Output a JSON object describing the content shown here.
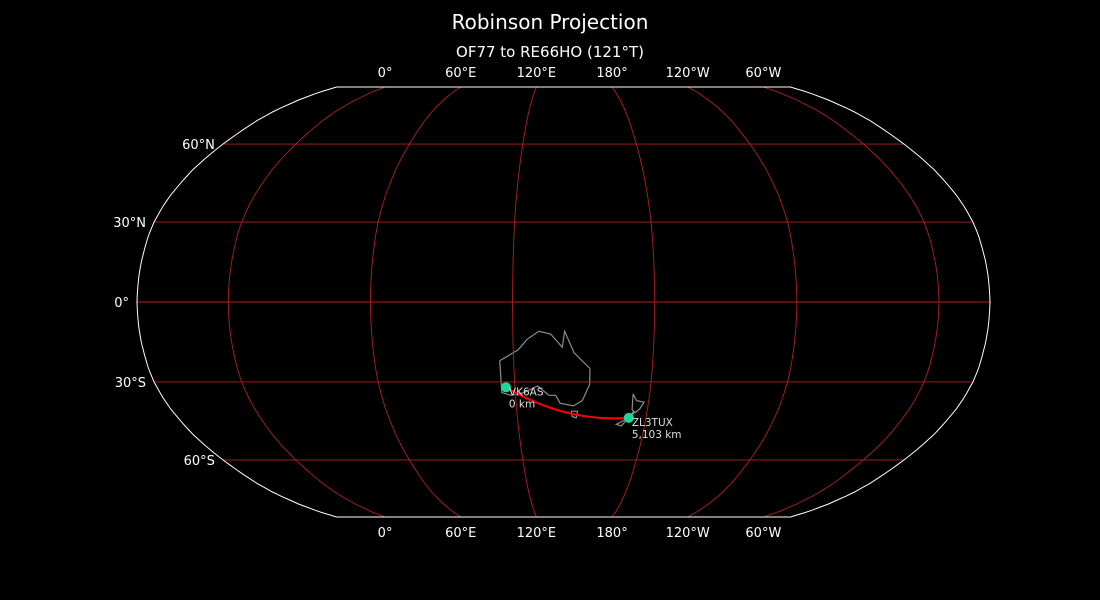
{
  "title": "Robinson Projection",
  "subtitle": "OF77 to RE66HO (121°T)",
  "projection": "robinson",
  "central_longitude": 141.5,
  "colors": {
    "background": "#000000",
    "graticule": "#b02020",
    "coastline": "#8c8c8c",
    "border": "#ffffff",
    "path": "#ff0000",
    "station": "#19d8a0"
  },
  "lon_labels": [
    {
      "lon": 0,
      "text": "0°"
    },
    {
      "lon": 60,
      "text": "60°E"
    },
    {
      "lon": 120,
      "text": "120°E"
    },
    {
      "lon": 180,
      "text": "180°"
    },
    {
      "lon": -120,
      "text": "120°W"
    },
    {
      "lon": -60,
      "text": "60°W"
    }
  ],
  "lat_labels": [
    {
      "lat": 60,
      "text": "60°N"
    },
    {
      "lat": 30,
      "text": "30°N"
    },
    {
      "lat": 0,
      "text": "0°"
    },
    {
      "lat": -30,
      "text": "30°S"
    },
    {
      "lat": -60,
      "text": "60°S"
    }
  ],
  "stations": [
    {
      "call": "VK6AS",
      "grid": "OF77",
      "lat": -32.0,
      "lon": 116.0,
      "distance": "0 km"
    },
    {
      "call": "ZL3TUX",
      "grid": "RE66HO",
      "lat": -43.5,
      "lon": 172.0,
      "distance": "5,103 km"
    }
  ]
}
